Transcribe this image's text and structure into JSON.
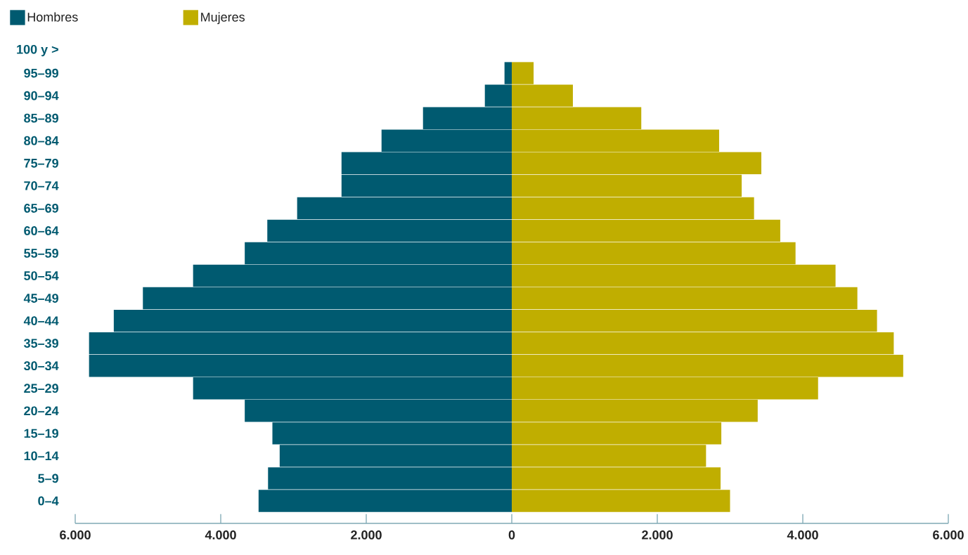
{
  "chart_data": {
    "type": "bar",
    "orientation": "horizontal",
    "stacked": true,
    "legend": "top left",
    "categories": [
      "100 y >",
      "95–99",
      "90–94",
      "85–89",
      "80–84",
      "75–79",
      "70–74",
      "65–69",
      "60–64",
      "55–59",
      "50–54",
      "45–49",
      "40–44",
      "35–39",
      "30–34",
      "25–29",
      "20–24",
      "15–19",
      "10–14",
      "5–9",
      "0–4"
    ],
    "series": [
      {
        "name": "Hombres",
        "color": "#005a70",
        "values": [
          0,
          -100,
          -370,
          -1220,
          -1790,
          -2340,
          -2340,
          -2950,
          -3360,
          -3670,
          -4380,
          -5070,
          -5470,
          -5810,
          -5810,
          -4380,
          -3670,
          -3290,
          -3190,
          -3350,
          -3480
        ]
      },
      {
        "name": "Mujeres",
        "color": "#c0ae00",
        "values": [
          0,
          300,
          840,
          1780,
          2850,
          3430,
          3160,
          3330,
          3690,
          3900,
          4450,
          4750,
          5020,
          5250,
          5380,
          4210,
          3380,
          2880,
          2670,
          2870,
          3000
        ]
      }
    ],
    "xlim": [
      -6000,
      6000
    ],
    "xticks": [
      {
        "value": -6000,
        "label": "6.000"
      },
      {
        "value": -4000,
        "label": "4.000"
      },
      {
        "value": -2000,
        "label": "2.000"
      },
      0,
      {
        "value": 2000,
        "label": "2.000"
      },
      {
        "value": 4000,
        "label": "4.000"
      },
      {
        "value": 6000,
        "label": "6.000"
      }
    ]
  }
}
